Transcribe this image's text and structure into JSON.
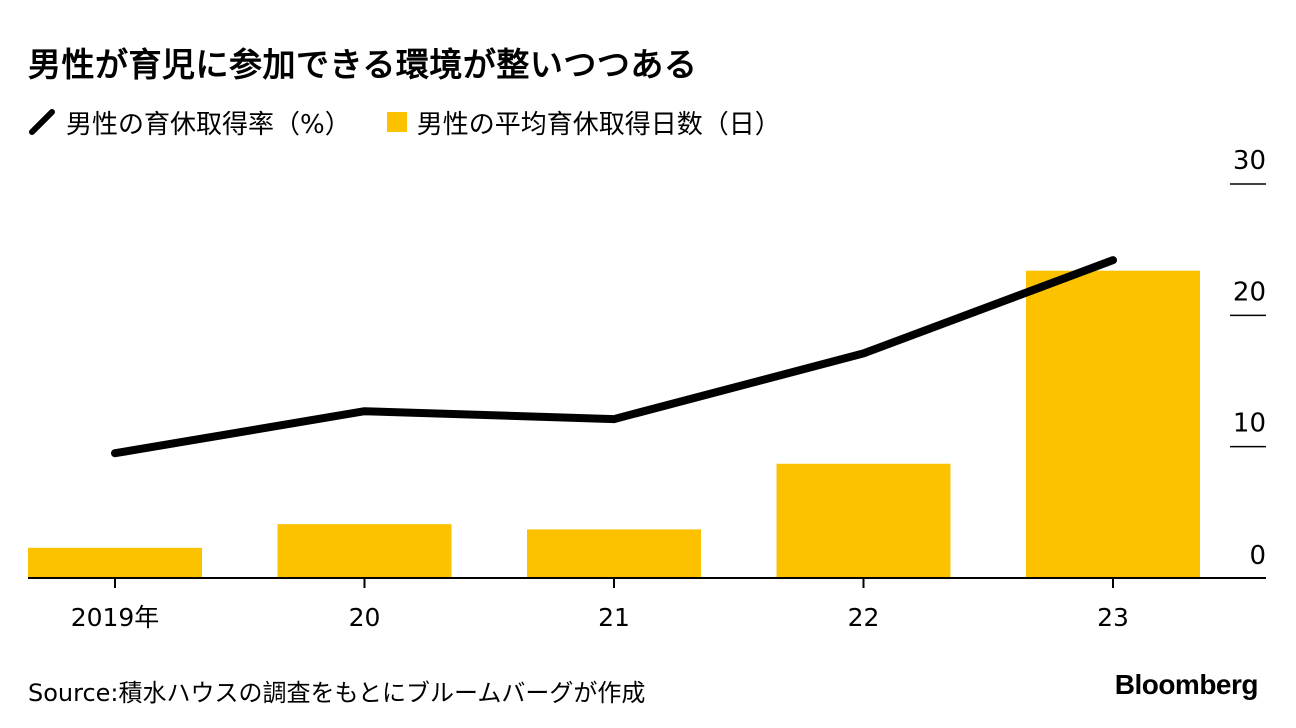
{
  "chart_data": {
    "type": "bar+line",
    "title": "男性が育児に参加できる環境が整いつつある",
    "categories": [
      "2019年",
      "20",
      "21",
      "22",
      "23"
    ],
    "series": [
      {
        "name": "男性の育休取得率（%）",
        "type": "line",
        "values": [
          9.5,
          12.7,
          12.1,
          17.1,
          24.2
        ]
      },
      {
        "name": "男性の平均育休取得日数（日）",
        "type": "bar",
        "values": [
          2.3,
          4.1,
          3.7,
          8.7,
          23.4
        ]
      }
    ],
    "yaxis": {
      "position": "right",
      "ylim": [
        0,
        30
      ],
      "ticks": [
        0,
        10,
        20,
        30
      ],
      "tick_labels": [
        "0",
        "10",
        "20",
        "30"
      ]
    },
    "colors": {
      "bar": "#fcc200",
      "line": "#000000",
      "axis": "#000000"
    },
    "source": "Source:積水ハウスの調査をもとにブルームバーグが作成",
    "brand": "Bloomberg"
  }
}
